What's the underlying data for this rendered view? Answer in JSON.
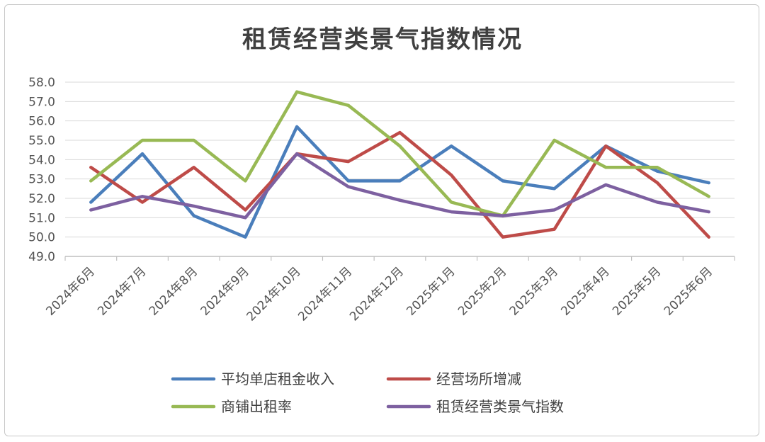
{
  "chart_data": {
    "type": "line",
    "title": "租赁经营类景气指数情况",
    "categories": [
      "2024年6月",
      "2024年7月",
      "2024年8月",
      "2024年9月",
      "2024年10月",
      "2024年11月",
      "2024年12月",
      "2025年1月",
      "2025年2月",
      "2025年3月",
      "2025年4月",
      "2025年5月",
      "2025年6月"
    ],
    "y_ticks": [
      "49.0",
      "50.0",
      "51.0",
      "52.0",
      "53.0",
      "54.0",
      "55.0",
      "56.0",
      "57.0",
      "58.0"
    ],
    "ylim": [
      49,
      58
    ],
    "grid": true,
    "legend_position": "bottom",
    "series": [
      {
        "name": "平均单店租金收入",
        "color": "#4a7ebb",
        "values": [
          51.8,
          54.3,
          51.1,
          50.0,
          55.7,
          52.9,
          52.9,
          54.7,
          52.9,
          52.5,
          54.7,
          53.4,
          52.8
        ]
      },
      {
        "name": "经营场所增减",
        "color": "#be4b48",
        "values": [
          53.6,
          51.8,
          53.6,
          51.4,
          54.3,
          53.9,
          55.4,
          53.2,
          50.0,
          50.4,
          54.7,
          52.8,
          50.0
        ]
      },
      {
        "name": "商铺出租率",
        "color": "#98b954",
        "values": [
          52.9,
          55.0,
          55.0,
          52.9,
          57.5,
          56.8,
          54.7,
          51.8,
          51.1,
          55.0,
          53.6,
          53.6,
          52.1
        ]
      },
      {
        "name": "租赁经营类景气指数",
        "color": "#7d60a0",
        "values": [
          51.4,
          52.1,
          51.6,
          51.0,
          54.3,
          52.6,
          51.9,
          51.3,
          51.1,
          51.4,
          52.7,
          51.8,
          51.3
        ]
      }
    ]
  }
}
